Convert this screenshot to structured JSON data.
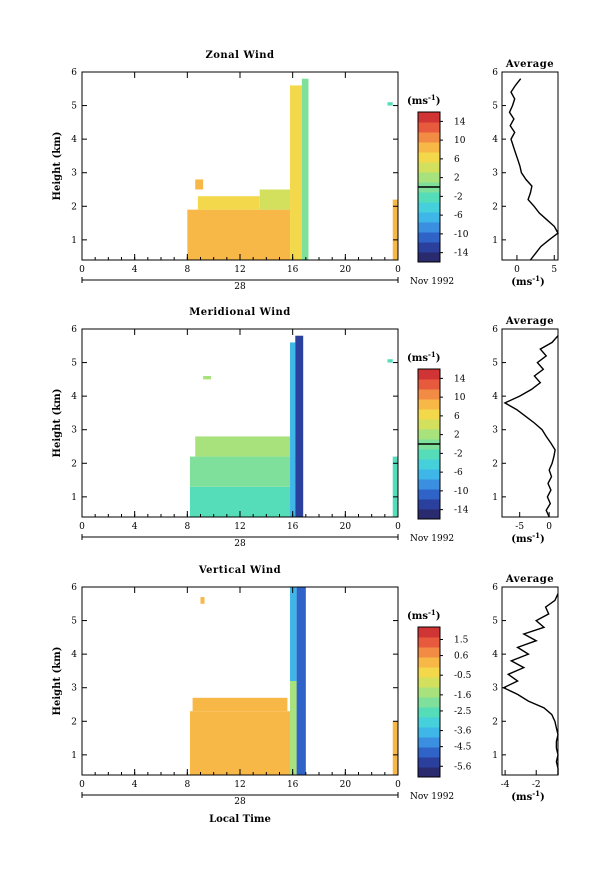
{
  "figure": {
    "x_label": "Local Time",
    "date_label": "Nov 1992",
    "day_label": "28",
    "y_label": "Height (km)",
    "unit_label": "(ms",
    "unit_sup": "-1",
    "average_title": "Average",
    "colormap": [
      "#2a2a6e",
      "#2b3f9c",
      "#2f63c8",
      "#3a8fe0",
      "#3fb6e8",
      "#46d0dc",
      "#55dcb8",
      "#7ee09a",
      "#a8e27c",
      "#d2e05e",
      "#f2d84a",
      "#f8b848",
      "#f28c44",
      "#e85a3e",
      "#d03434"
    ]
  },
  "chart_data": [
    {
      "type": "heatmap",
      "title": "Zonal Wind",
      "x_ticks": [
        "0",
        "4",
        "8",
        "12",
        "16",
        "20",
        "0"
      ],
      "x_range": [
        0,
        24
      ],
      "y_ticks": [
        "1",
        "2",
        "3",
        "4",
        "5",
        "6"
      ],
      "y_range": [
        0.4,
        6.0
      ],
      "colorbar_ticks": [
        "14",
        "10",
        "6",
        "2",
        "-2",
        "-6",
        "-10",
        "-14"
      ],
      "colorbar_range": [
        -16,
        16
      ],
      "colorbar_zero_line": 0,
      "data_regions": [
        {
          "t": [
            8.0,
            15.8
          ],
          "h": [
            0.4,
            1.9
          ],
          "v": 9
        },
        {
          "t": [
            8.8,
            13.5
          ],
          "h": [
            1.9,
            2.3
          ],
          "v": 7
        },
        {
          "t": [
            13.5,
            15.8
          ],
          "h": [
            1.9,
            2.5
          ],
          "v": 4
        },
        {
          "t": [
            15.8,
            16.7
          ],
          "h": [
            0.4,
            5.6
          ],
          "v": 6
        },
        {
          "t": [
            16.7,
            17.2
          ],
          "h": [
            0.4,
            5.8
          ],
          "v": 1
        },
        {
          "t": [
            8.6,
            9.2
          ],
          "h": [
            2.5,
            2.8
          ],
          "v": 8
        },
        {
          "t": [
            23.6,
            24.0
          ],
          "h": [
            0.4,
            2.2
          ],
          "v": 8
        },
        {
          "t": [
            23.2,
            23.6
          ],
          "h": [
            5.0,
            5.1
          ],
          "v": -2
        }
      ],
      "average": {
        "x_ticks": [
          "0",
          "5"
        ],
        "x_range": [
          -2,
          5.5
        ],
        "height": [
          0.4,
          0.6,
          0.8,
          1.0,
          1.2,
          1.4,
          1.6,
          1.8,
          2.0,
          2.2,
          2.4,
          2.6,
          2.8,
          3.0,
          3.2,
          3.4,
          3.6,
          3.8,
          4.0,
          4.2,
          4.4,
          4.6,
          4.8,
          5.0,
          5.2,
          5.4,
          5.6,
          5.8
        ],
        "value": [
          1.8,
          2.5,
          3.2,
          4.3,
          5.5,
          5.0,
          4.0,
          3.0,
          2.3,
          1.5,
          1.8,
          2.0,
          1.2,
          0.6,
          0.4,
          0.1,
          -0.2,
          -0.5,
          -0.8,
          -0.3,
          -0.9,
          -0.4,
          -1.0,
          -0.6,
          -0.3,
          -0.8,
          -0.2,
          0.5
        ]
      }
    },
    {
      "type": "heatmap",
      "title": "Meridional Wind",
      "x_ticks": [
        "0",
        "4",
        "8",
        "12",
        "16",
        "20",
        "0"
      ],
      "x_range": [
        0,
        24
      ],
      "y_ticks": [
        "1",
        "2",
        "3",
        "4",
        "5",
        "6"
      ],
      "y_range": [
        0.4,
        6.0
      ],
      "colorbar_ticks": [
        "14",
        "10",
        "6",
        "2",
        "-2",
        "-6",
        "-10",
        "-14"
      ],
      "colorbar_range": [
        -16,
        16
      ],
      "colorbar_zero_line": 0,
      "data_regions": [
        {
          "t": [
            8.2,
            15.8
          ],
          "h": [
            0.4,
            1.3
          ],
          "v": -3
        },
        {
          "t": [
            8.2,
            15.8
          ],
          "h": [
            1.3,
            2.2
          ],
          "v": 0
        },
        {
          "t": [
            8.6,
            15.8
          ],
          "h": [
            2.2,
            2.8
          ],
          "v": 2
        },
        {
          "t": [
            15.8,
            16.2
          ],
          "h": [
            0.4,
            5.6
          ],
          "v": -6
        },
        {
          "t": [
            16.2,
            16.8
          ],
          "h": [
            0.4,
            5.8
          ],
          "v": -12
        },
        {
          "t": [
            9.2,
            9.8
          ],
          "h": [
            4.5,
            4.6
          ],
          "v": 2
        },
        {
          "t": [
            23.6,
            24.0
          ],
          "h": [
            0.4,
            2.2
          ],
          "v": -2
        },
        {
          "t": [
            23.2,
            23.6
          ],
          "h": [
            5.0,
            5.1
          ],
          "v": -2
        }
      ],
      "average": {
        "x_ticks": [
          "-5",
          "0"
        ],
        "x_range": [
          -8,
          1.5
        ],
        "height": [
          0.4,
          0.6,
          0.8,
          1.0,
          1.2,
          1.4,
          1.6,
          1.8,
          2.0,
          2.2,
          2.4,
          2.6,
          2.8,
          3.0,
          3.2,
          3.4,
          3.6,
          3.8,
          4.0,
          4.2,
          4.4,
          4.6,
          4.8,
          5.0,
          5.2,
          5.4,
          5.6,
          5.8
        ],
        "value": [
          0.0,
          -0.5,
          0.2,
          -0.3,
          0.3,
          -0.2,
          0.4,
          0.0,
          0.5,
          0.8,
          1.0,
          0.3,
          -0.5,
          -1.2,
          -2.5,
          -4.0,
          -5.5,
          -7.5,
          -5.0,
          -3.0,
          -1.5,
          -2.5,
          -1.0,
          -2.0,
          -0.5,
          -1.5,
          0.5,
          1.5
        ]
      }
    },
    {
      "type": "heatmap",
      "title": "Vertical Wind",
      "x_ticks": [
        "0",
        "4",
        "8",
        "12",
        "16",
        "20",
        "0"
      ],
      "x_range": [
        0,
        24
      ],
      "y_ticks": [
        "1",
        "2",
        "3",
        "4",
        "5",
        "6"
      ],
      "y_range": [
        0.4,
        6.0
      ],
      "colorbar_ticks": [
        "1.5",
        "0.6",
        "-0.5",
        "-1.6",
        "-2.5",
        "-3.6",
        "-4.5",
        "-5.6"
      ],
      "colorbar_range": [
        -6.2,
        2.2
      ],
      "colorbar_zero_line": null,
      "data_regions": [
        {
          "t": [
            8.2,
            15.8
          ],
          "h": [
            0.4,
            2.3
          ],
          "v": 0.2
        },
        {
          "t": [
            8.4,
            15.6
          ],
          "h": [
            2.3,
            2.7
          ],
          "v": 0.3
        },
        {
          "t": [
            15.8,
            16.3
          ],
          "h": [
            0.4,
            3.2
          ],
          "v": -1.5
        },
        {
          "t": [
            15.8,
            16.3
          ],
          "h": [
            3.2,
            6.0
          ],
          "v": -3.5
        },
        {
          "t": [
            16.3,
            17.0
          ],
          "h": [
            0.4,
            6.0
          ],
          "v": -5.0
        },
        {
          "t": [
            9.0,
            9.3
          ],
          "h": [
            5.5,
            5.7
          ],
          "v": 0.4
        },
        {
          "t": [
            23.6,
            24.0
          ],
          "h": [
            0.4,
            2.0
          ],
          "v": 0.2
        }
      ],
      "average": {
        "x_ticks": [
          "-4",
          "-2"
        ],
        "x_range": [
          -4.2,
          -0.6
        ],
        "height": [
          0.4,
          0.6,
          0.8,
          1.0,
          1.2,
          1.4,
          1.6,
          1.8,
          2.0,
          2.2,
          2.4,
          2.6,
          2.8,
          3.0,
          3.2,
          3.4,
          3.6,
          3.8,
          4.0,
          4.2,
          4.4,
          4.6,
          4.8,
          5.0,
          5.2,
          5.4,
          5.6,
          5.8
        ],
        "value": [
          -0.6,
          -0.6,
          -0.7,
          -0.6,
          -0.7,
          -0.7,
          -0.6,
          -0.7,
          -0.8,
          -1.0,
          -1.5,
          -2.5,
          -3.2,
          -4.1,
          -3.2,
          -3.8,
          -2.8,
          -3.6,
          -2.5,
          -3.2,
          -2.0,
          -2.8,
          -1.5,
          -2.0,
          -1.2,
          -1.4,
          -0.8,
          -0.6
        ]
      }
    }
  ]
}
